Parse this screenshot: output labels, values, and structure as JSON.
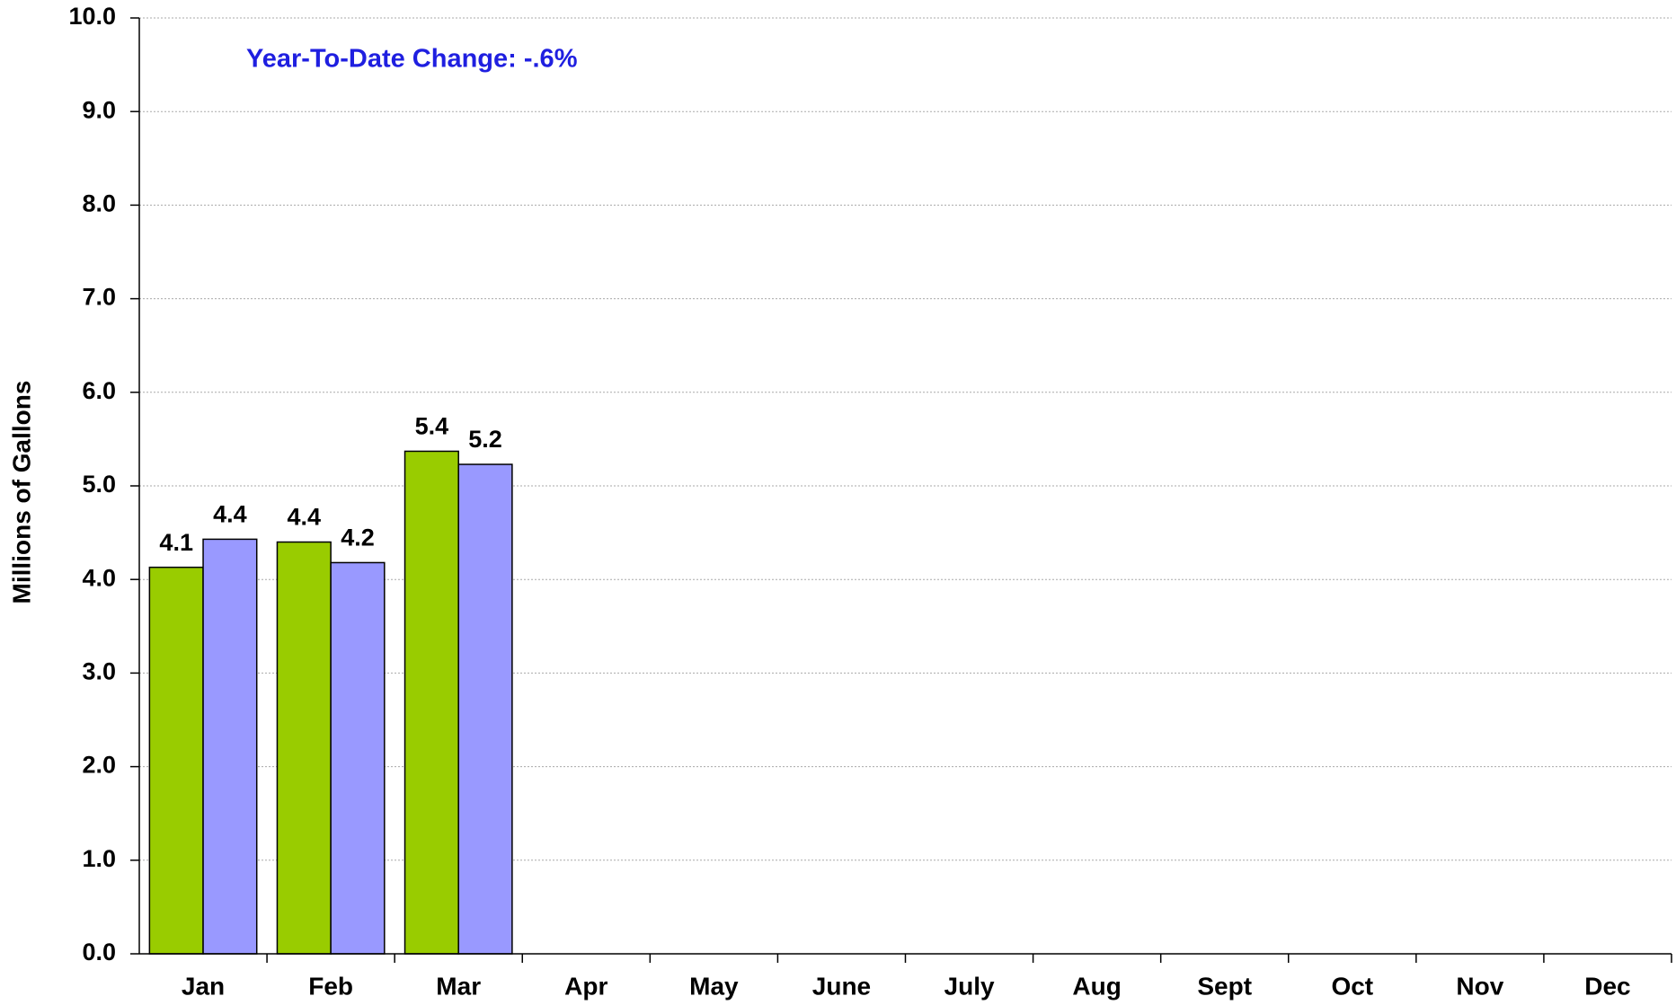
{
  "chart_data": {
    "type": "bar",
    "y_label": "Millions of Gallons",
    "annotation": "Year-To-Date Change: -.6%",
    "categories": [
      "Jan",
      "Feb",
      "Mar",
      "Apr",
      "May",
      "June",
      "July",
      "Aug",
      "Sept",
      "Oct",
      "Nov",
      "Dec"
    ],
    "series": [
      {
        "color": "#99cc00",
        "values": [
          4.13,
          4.4,
          5.37,
          null,
          null,
          null,
          null,
          null,
          null,
          null,
          null,
          null
        ],
        "value_labels": [
          "4.1",
          "4.4",
          "5.4",
          null,
          null,
          null,
          null,
          null,
          null,
          null,
          null,
          null
        ]
      },
      {
        "color": "#9999ff",
        "values": [
          4.43,
          4.18,
          5.23,
          null,
          null,
          null,
          null,
          null,
          null,
          null,
          null,
          null
        ],
        "value_labels": [
          "4.4",
          "4.2",
          "5.2",
          null,
          null,
          null,
          null,
          null,
          null,
          null,
          null,
          null
        ]
      }
    ],
    "ylim": [
      0,
      10
    ],
    "yticks": [
      {
        "value": 0,
        "label": "0.0"
      },
      {
        "value": 1,
        "label": "1.0"
      },
      {
        "value": 2,
        "label": "2.0"
      },
      {
        "value": 3,
        "label": "3.0"
      },
      {
        "value": 4,
        "label": "4.0"
      },
      {
        "value": 5,
        "label": "5.0"
      },
      {
        "value": 6,
        "label": "6.0"
      },
      {
        "value": 7,
        "label": "7.0"
      },
      {
        "value": 8,
        "label": "8.0"
      },
      {
        "value": 9,
        "label": "9.0"
      },
      {
        "value": 10,
        "label": "10.0"
      }
    ],
    "grid": true
  }
}
